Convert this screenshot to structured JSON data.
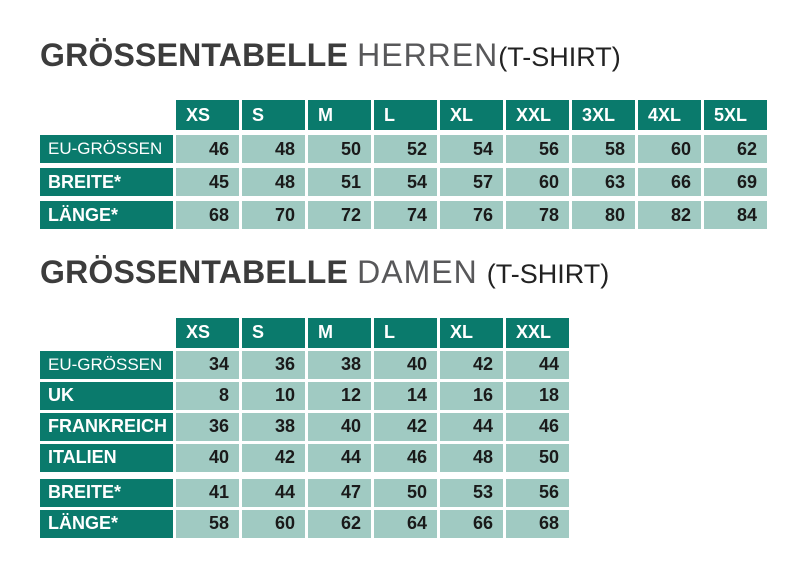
{
  "colors": {
    "table_header_bg": "#0a7a6c",
    "table_cell_bg": "#a0cac2",
    "title_main_color": "#3c3c3c",
    "title_category_color": "#58585a",
    "title_product_color": "#222222",
    "value_text_color": "#1a1a1a",
    "header_text_color": "#ffffff"
  },
  "herren": {
    "title": {
      "main": "GRÖSSENTABELLE",
      "category": "HERREN",
      "product": "(T-SHIRT)"
    },
    "table": {
      "columns": [
        "XS",
        "S",
        "M",
        "L",
        "XL",
        "XXL",
        "3XL",
        "4XL",
        "5XL"
      ],
      "rows": [
        {
          "label": "EU-GRÖSSEN",
          "emphasis": false,
          "values": [
            46,
            48,
            50,
            52,
            54,
            56,
            58,
            60,
            62
          ]
        },
        {
          "label": "BREITE*",
          "emphasis": true,
          "values": [
            45,
            48,
            51,
            54,
            57,
            60,
            63,
            66,
            69
          ]
        },
        {
          "label": "LÄNGE*",
          "emphasis": true,
          "values": [
            68,
            70,
            72,
            74,
            76,
            78,
            80,
            82,
            84
          ]
        }
      ]
    }
  },
  "damen": {
    "title": {
      "main": "GRÖSSENTABELLE",
      "category": "DAMEN",
      "product": "(T-SHIRT)"
    },
    "table": {
      "columns": [
        "XS",
        "S",
        "M",
        "L",
        "XL",
        "XXL"
      ],
      "rows": [
        {
          "label": "EU-GRÖSSEN",
          "emphasis": false,
          "values": [
            34,
            36,
            38,
            40,
            42,
            44
          ]
        },
        {
          "label": "UK",
          "emphasis": true,
          "values": [
            8,
            10,
            12,
            14,
            16,
            18
          ]
        },
        {
          "label": "FRANKREICH",
          "emphasis": true,
          "values": [
            36,
            38,
            40,
            42,
            44,
            46
          ]
        },
        {
          "label": "ITALIEN",
          "emphasis": true,
          "values": [
            40,
            42,
            44,
            46,
            48,
            50
          ]
        },
        {
          "label": "BREITE*",
          "emphasis": true,
          "group_break": true,
          "values": [
            41,
            44,
            47,
            50,
            53,
            56
          ]
        },
        {
          "label": "LÄNGE*",
          "emphasis": true,
          "values": [
            58,
            60,
            62,
            64,
            66,
            68
          ]
        }
      ]
    }
  }
}
